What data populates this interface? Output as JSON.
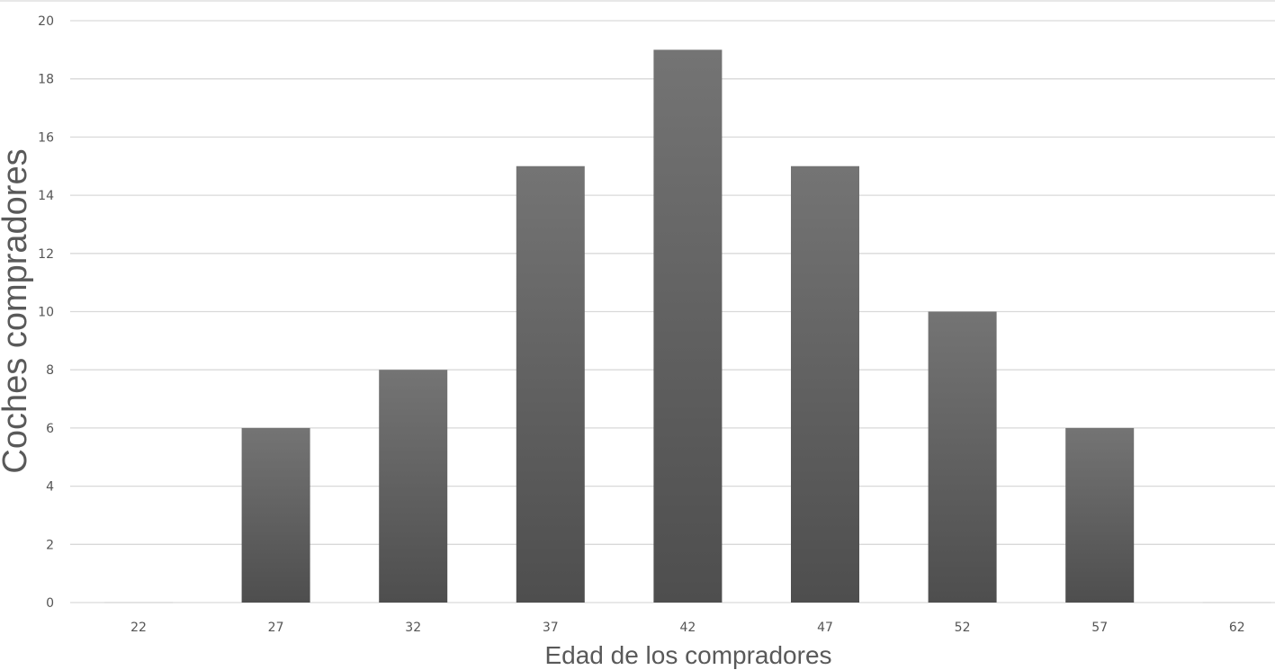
{
  "chart_data": {
    "type": "bar",
    "title": "",
    "xlabel": "Edad de los compradores",
    "ylabel": "Coches compradores",
    "categories": [
      "22",
      "27",
      "32",
      "37",
      "42",
      "47",
      "52",
      "57",
      "62"
    ],
    "values": [
      0,
      6,
      8,
      15,
      19,
      15,
      10,
      6,
      0
    ],
    "ylim": [
      0,
      20
    ],
    "yticks": [
      0,
      2,
      4,
      6,
      8,
      10,
      12,
      14,
      16,
      18,
      20
    ],
    "grid": true,
    "legend": "none",
    "colors": {
      "bar_top": "#747474",
      "bar_bottom": "#4e4e4e",
      "zero_bar": "#e4e4e4"
    }
  }
}
